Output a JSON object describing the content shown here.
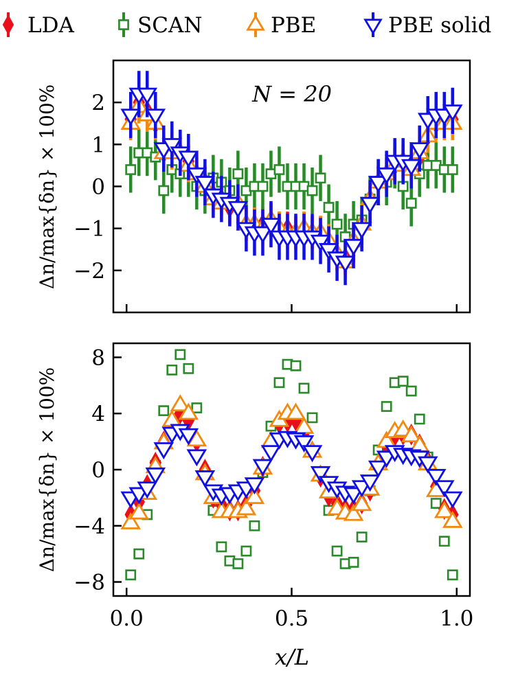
{
  "legend": [
    {
      "name": "LDA",
      "color": "#e8101a",
      "marker": "thin-diamond"
    },
    {
      "name": "SCAN",
      "color": "#2a8a2a",
      "marker": "square"
    },
    {
      "name": "PBE",
      "color": "#f08a10",
      "marker": "triangle-up"
    },
    {
      "name": "PBE solid",
      "color": "#1010e0",
      "marker": "triangle-down"
    }
  ],
  "chart_data": [
    {
      "type": "scatter",
      "panel": "top",
      "annotation": "N = 20",
      "ylabel": "Δn/max{δn} × 100%",
      "xlabel": "",
      "xlim": [
        -0.04,
        1.04
      ],
      "ylim": [
        -3.0,
        3.0
      ],
      "yticks": [
        -2,
        -1,
        0,
        1,
        2
      ],
      "ytick_labels": [
        "−2",
        "−1",
        "0",
        "1",
        "2"
      ],
      "xticks": [
        0,
        0.5,
        1.0
      ],
      "error_bars": true,
      "x": [
        0.0125,
        0.0375,
        0.0625,
        0.0875,
        0.1125,
        0.1375,
        0.1625,
        0.1875,
        0.2125,
        0.2375,
        0.2625,
        0.2875,
        0.3125,
        0.3375,
        0.3625,
        0.3875,
        0.4125,
        0.4375,
        0.4625,
        0.4875,
        0.5125,
        0.5375,
        0.5625,
        0.5875,
        0.6125,
        0.6375,
        0.6625,
        0.6875,
        0.7125,
        0.7375,
        0.7625,
        0.7875,
        0.8125,
        0.8375,
        0.8625,
        0.8875,
        0.9125,
        0.9375,
        0.9625,
        0.9875
      ],
      "series": [
        {
          "name": "LDA",
          "err": 0.4,
          "values": [
            1.6,
            2.0,
            1.8,
            1.5,
            0.8,
            0.9,
            0.8,
            0.6,
            0.3,
            0.1,
            -0.2,
            -0.3,
            -0.5,
            -0.5,
            -0.9,
            -0.9,
            -0.9,
            -0.8,
            -1.0,
            -1.0,
            -1.1,
            -1.0,
            -1.1,
            -1.1,
            -1.3,
            -1.6,
            -1.7,
            -1.4,
            -1.0,
            -0.4,
            0.1,
            0.3,
            0.5,
            0.6,
            0.5,
            0.7,
            1.2,
            1.5,
            1.6,
            1.6
          ]
        },
        {
          "name": "SCAN",
          "err": 0.55,
          "values": [
            0.4,
            0.8,
            0.8,
            0.7,
            -0.1,
            0.4,
            0.3,
            0.3,
            0.0,
            -0.1,
            0.2,
            0.1,
            -0.1,
            0.3,
            -0.1,
            0.0,
            0.0,
            0.3,
            0.4,
            0.0,
            0.0,
            0.0,
            -0.1,
            0.2,
            -0.5,
            -0.9,
            -1.2,
            -0.9,
            -0.8,
            -0.3,
            0.1,
            0.1,
            0.5,
            0.0,
            -0.4,
            0.3,
            0.5,
            0.5,
            0.4,
            0.4
          ]
        },
        {
          "name": "PBE",
          "err": 0.4,
          "values": [
            1.5,
            1.9,
            1.7,
            1.5,
            0.8,
            0.8,
            0.8,
            0.5,
            0.3,
            0.0,
            -0.3,
            -0.4,
            -0.4,
            -0.4,
            -0.9,
            -0.9,
            -1.0,
            -0.8,
            -1.0,
            -1.1,
            -1.1,
            -1.0,
            -1.1,
            -1.1,
            -1.3,
            -1.6,
            -1.8,
            -1.3,
            -0.9,
            -0.3,
            0.1,
            0.3,
            0.5,
            0.6,
            0.4,
            0.8,
            1.2,
            1.5,
            1.5,
            1.5
          ]
        },
        {
          "name": "PBE solid",
          "err": 0.55,
          "values": [
            1.7,
            2.2,
            2.2,
            1.7,
            0.9,
            1.0,
            0.8,
            0.7,
            0.3,
            0.1,
            -0.2,
            -0.3,
            -0.4,
            -0.5,
            -1.0,
            -1.1,
            -1.1,
            -0.9,
            -1.2,
            -1.2,
            -1.2,
            -1.2,
            -1.2,
            -1.3,
            -1.5,
            -1.7,
            -1.8,
            -1.4,
            -1.0,
            -0.4,
            0.1,
            0.3,
            0.6,
            0.6,
            0.5,
            0.9,
            1.6,
            1.7,
            1.7,
            1.8
          ]
        }
      ]
    },
    {
      "type": "scatter",
      "panel": "bottom",
      "ylabel": "Δn/max{δn} × 100%",
      "xlabel": "x/L",
      "xlim": [
        -0.04,
        1.04
      ],
      "ylim": [
        -9.0,
        9.0
      ],
      "yticks": [
        -8,
        -4,
        0,
        4,
        8
      ],
      "ytick_labels": [
        "−8",
        "−4",
        "0",
        "4",
        "8"
      ],
      "xticks": [
        0,
        0.5,
        1.0
      ],
      "xtick_labels": [
        "0.0",
        "0.5",
        "1.0"
      ],
      "error_bars": false,
      "x": [
        0.0125,
        0.0375,
        0.0625,
        0.0875,
        0.1125,
        0.1375,
        0.1625,
        0.1875,
        0.2125,
        0.2375,
        0.2625,
        0.2875,
        0.3125,
        0.3375,
        0.3625,
        0.3875,
        0.4125,
        0.4375,
        0.4625,
        0.4875,
        0.5125,
        0.5375,
        0.5625,
        0.5875,
        0.6125,
        0.6375,
        0.6625,
        0.6875,
        0.7125,
        0.7375,
        0.7625,
        0.7875,
        0.8125,
        0.8375,
        0.8625,
        0.8875,
        0.9125,
        0.9375,
        0.9625,
        0.9875
      ],
      "series": [
        {
          "name": "SCAN",
          "values": [
            -7.5,
            -6.0,
            -3.2,
            0.3,
            4.2,
            7.1,
            8.2,
            7.2,
            4.4,
            -0.3,
            -2.9,
            -5.5,
            -6.5,
            -6.7,
            -5.8,
            -4.0,
            -0.2,
            3.1,
            6.2,
            7.5,
            7.4,
            5.8,
            3.7,
            -0.2,
            -2.9,
            -5.8,
            -6.7,
            -6.6,
            -4.8,
            -1.5,
            1.4,
            4.5,
            6.2,
            6.3,
            5.6,
            3.6,
            0.9,
            -2.4,
            -5.1,
            -7.5
          ]
        },
        {
          "name": "LDA",
          "values": [
            -3.2,
            -2.3,
            -1.1,
            0.5,
            2.0,
            3.3,
            4.0,
            3.5,
            2.0,
            0.0,
            -2.0,
            -2.5,
            -2.9,
            -2.9,
            -2.5,
            -1.5,
            0.2,
            2.0,
            3.3,
            3.4,
            3.5,
            2.6,
            1.3,
            -0.5,
            -1.9,
            -2.4,
            -2.8,
            -2.8,
            -2.4,
            -1.5,
            0.2,
            1.7,
            2.4,
            2.5,
            2.5,
            1.8,
            0.6,
            -1.2,
            -2.8,
            -3.2
          ]
        },
        {
          "name": "PBE",
          "values": [
            -3.8,
            -3.1,
            -1.7,
            0.2,
            1.9,
            3.5,
            4.6,
            4.0,
            2.1,
            -0.3,
            -2.0,
            -3.0,
            -3.0,
            -3.0,
            -2.8,
            -2.0,
            0.1,
            2.0,
            3.5,
            4.0,
            4.0,
            3.0,
            1.3,
            -0.4,
            -1.6,
            -2.8,
            -3.1,
            -3.2,
            -2.5,
            -1.4,
            0.4,
            2.0,
            2.7,
            2.8,
            2.4,
            1.7,
            0.4,
            -1.5,
            -3.0,
            -3.7
          ]
        },
        {
          "name": "PBE solid",
          "values": [
            -2.0,
            -1.7,
            -1.3,
            -0.3,
            1.5,
            2.6,
            2.8,
            2.5,
            1.0,
            -0.5,
            -1.5,
            -1.8,
            -1.7,
            -1.5,
            -1.3,
            -1.0,
            0.3,
            1.3,
            2.2,
            2.3,
            2.2,
            2.0,
            1.3,
            -0.2,
            -0.9,
            -1.3,
            -1.6,
            -1.7,
            -1.2,
            -0.8,
            0.2,
            0.9,
            1.3,
            1.1,
            1.0,
            0.9,
            0.5,
            -0.4,
            -1.2,
            -2.0
          ]
        }
      ]
    }
  ]
}
